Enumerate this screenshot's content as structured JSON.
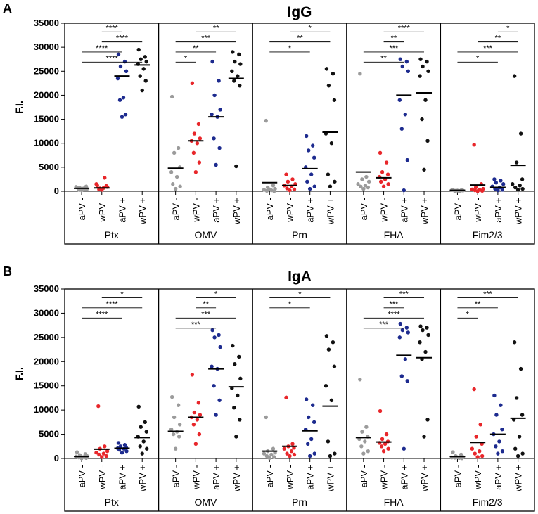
{
  "colors": {
    "aPV-": "#9b9b9b",
    "wPV-": "#e8262a",
    "aPV+": "#1d2b8f",
    "wPV+": "#111111"
  },
  "chart_data": [
    {
      "type": "scatter",
      "letter": "A",
      "title": "IgG",
      "ylabel": "F.I.",
      "ylim": [
        0,
        35000
      ],
      "yticks": [
        "0",
        "5000",
        "10000",
        "15000",
        "20000",
        "25000",
        "30000",
        "35000"
      ],
      "groups": [
        "aPV -",
        "wPV -",
        "aPV +",
        "wPV +"
      ],
      "panels": [
        {
          "antigen": "Ptx",
          "points": [
            [
              800,
              400,
              700,
              500,
              900,
              600,
              300,
              1000,
              200
            ],
            [
              1200,
              2800,
              600,
              900,
              1500,
              700,
              400,
              1100,
              300
            ],
            [
              28500,
              27000,
              26000,
              25000,
              23500,
              19500,
              19000,
              16000,
              15500
            ],
            [
              29500,
              28000,
              27500,
              27000,
              26500,
              25500,
              24000,
              23000,
              21000
            ]
          ],
          "medians": [
            600,
            700,
            24000,
            26300
          ],
          "sig": [
            {
              "a": 0,
              "b": 3,
              "label": "****"
            },
            {
              "a": 0,
              "b": 2,
              "label": "****"
            },
            {
              "a": 1,
              "b": 3,
              "label": "****"
            },
            {
              "a": 1,
              "b": 2,
              "label": "****"
            }
          ]
        },
        {
          "antigen": "OMV",
          "points": [
            [
              19700,
              9000,
              8000,
              5000,
              4000,
              3000,
              1500,
              1000,
              500
            ],
            [
              22500,
              14000,
              12000,
              11000,
              10500,
              10000,
              8000,
              6000,
              4000
            ],
            [
              27000,
              23000,
              20000,
              17000,
              16000,
              15500,
              11000,
              9000,
              5500
            ],
            [
              29000,
              28500,
              27000,
              26500,
              25000,
              24000,
              23000,
              22000,
              5200
            ]
          ],
          "medians": [
            4800,
            10500,
            15500,
            23500
          ],
          "sig": [
            {
              "a": 0,
              "b": 1,
              "label": "*"
            },
            {
              "a": 0,
              "b": 2,
              "label": "**"
            },
            {
              "a": 0,
              "b": 3,
              "label": "***"
            },
            {
              "a": 1,
              "b": 3,
              "label": "**"
            }
          ]
        },
        {
          "antigen": "Prn",
          "points": [
            [
              14700,
              1200,
              800,
              500,
              300,
              200,
              100,
              50,
              400
            ],
            [
              3500,
              2500,
              2000,
              1500,
              1200,
              1000,
              600,
              400,
              200
            ],
            [
              11500,
              9500,
              8500,
              7000,
              5000,
              3500,
              2000,
              1000,
              500
            ],
            [
              25500,
              24500,
              22000,
              19000,
              12000,
              10000,
              3500,
              2000,
              1000
            ]
          ],
          "medians": [
            1800,
            1200,
            4700,
            12300
          ],
          "sig": [
            {
              "a": 0,
              "b": 2,
              "label": "*"
            },
            {
              "a": 0,
              "b": 3,
              "label": "**"
            },
            {
              "a": 1,
              "b": 3,
              "label": "*"
            }
          ]
        },
        {
          "antigen": "FHA",
          "points": [
            [
              24500,
              3000,
              2500,
              2000,
              1500,
              1200,
              1000,
              800,
              500
            ],
            [
              8000,
              6000,
              4000,
              3500,
              3000,
              2500,
              2000,
              1500,
              1000
            ],
            [
              27500,
              27000,
              26000,
              25000,
              19000,
              16000,
              13000,
              6500,
              200
            ],
            [
              27500,
              27000,
              26000,
              25000,
              24000,
              19000,
              15000,
              10500,
              4500
            ]
          ],
          "medians": [
            4000,
            2800,
            20000,
            20500
          ],
          "sig": [
            {
              "a": 0,
              "b": 2,
              "label": "**"
            },
            {
              "a": 0,
              "b": 3,
              "label": "***"
            },
            {
              "a": 1,
              "b": 2,
              "label": "**"
            },
            {
              "a": 1,
              "b": 3,
              "label": "****"
            }
          ]
        },
        {
          "antigen": "Fim2/3",
          "points": [
            [
              300,
              200,
              100,
              150,
              250,
              50,
              100,
              200,
              150
            ],
            [
              9700,
              1500,
              800,
              500,
              400,
              300,
              200,
              100,
              50
            ],
            [
              2500,
              2200,
              1800,
              1500,
              1000,
              800,
              500,
              300,
              200
            ],
            [
              24000,
              12000,
              6000,
              2500,
              1500,
              1200,
              800,
              500,
              300
            ]
          ],
          "medians": [
            200,
            1300,
            800,
            5400
          ],
          "sig": [
            {
              "a": 0,
              "b": 2,
              "label": "*"
            },
            {
              "a": 0,
              "b": 3,
              "label": "***"
            },
            {
              "a": 1,
              "b": 3,
              "label": "**"
            },
            {
              "a": 2,
              "b": 3,
              "label": "*"
            }
          ]
        }
      ]
    },
    {
      "type": "scatter",
      "letter": "B",
      "title": "IgA",
      "ylabel": "F.I.",
      "ylim": [
        0,
        35000
      ],
      "yticks": [
        "0",
        "5000",
        "10000",
        "15000",
        "20000",
        "25000",
        "30000",
        "35000"
      ],
      "groups": [
        "aPV -",
        "wPV -",
        "aPV +",
        "wPV +"
      ],
      "panels": [
        {
          "antigen": "Ptx",
          "points": [
            [
              1300,
              900,
              700,
              500,
              400,
              300,
              200,
              100,
              50
            ],
            [
              10800,
              2500,
              2000,
              1500,
              1200,
              1000,
              800,
              500,
              300
            ],
            [
              3200,
              2800,
              2500,
              2200,
              2100,
              2000,
              1800,
              1500,
              1200
            ],
            [
              10700,
              7500,
              6500,
              5500,
              4500,
              3500,
              2500,
              2000,
              1000
            ]
          ],
          "medians": [
            400,
            1900,
            2100,
            4300
          ],
          "sig": [
            {
              "a": 0,
              "b": 2,
              "label": "****"
            },
            {
              "a": 0,
              "b": 3,
              "label": "****"
            },
            {
              "a": 1,
              "b": 3,
              "label": "*"
            }
          ]
        },
        {
          "antigen": "OMV",
          "points": [
            [
              12700,
              11000,
              8500,
              7000,
              6000,
              5500,
              5000,
              4500,
              2000
            ],
            [
              17300,
              11500,
              9500,
              9000,
              8500,
              8000,
              7000,
              5000,
              3000
            ],
            [
              26500,
              25500,
              25000,
              23000,
              19000,
              18500,
              15000,
              12000,
              9000
            ],
            [
              23300,
              21000,
              19500,
              16500,
              14500,
              13000,
              10500,
              8000,
              4500
            ]
          ],
          "medians": [
            5600,
            8500,
            18500,
            14800
          ],
          "sig": [
            {
              "a": 0,
              "b": 2,
              "label": "***"
            },
            {
              "a": 0,
              "b": 3,
              "label": "***"
            },
            {
              "a": 1,
              "b": 2,
              "label": "**"
            },
            {
              "a": 1,
              "b": 3,
              "label": "*"
            }
          ]
        },
        {
          "antigen": "Prn",
          "points": [
            [
              8500,
              2000,
              1500,
              1200,
              1000,
              800,
              500,
              300,
              100
            ],
            [
              12600,
              3000,
              2500,
              2200,
              2000,
              1500,
              1000,
              800,
              500
            ],
            [
              12200,
              11000,
              8500,
              7500,
              6000,
              4000,
              3000,
              1000,
              500
            ],
            [
              25300,
              24000,
              22500,
              19000,
              15000,
              12000,
              3500,
              1000,
              500
            ]
          ],
          "medians": [
            1500,
            2500,
            5700,
            10800
          ],
          "sig": [
            {
              "a": 0,
              "b": 2,
              "label": "*"
            },
            {
              "a": 0,
              "b": 3,
              "label": "*"
            }
          ]
        },
        {
          "antigen": "FHA",
          "points": [
            [
              16300,
              6500,
              5500,
              4500,
              4000,
              3500,
              2500,
              1500,
              1000
            ],
            [
              9800,
              5000,
              4000,
              3500,
              3200,
              3000,
              2500,
              2000,
              1500
            ],
            [
              27800,
              27000,
              26500,
              26000,
              25000,
              20500,
              17000,
              16000,
              2000
            ],
            [
              27300,
              27000,
              26500,
              25500,
              24000,
              22000,
              20500,
              8000,
              4500
            ]
          ],
          "medians": [
            4300,
            3400,
            21300,
            20800
          ],
          "sig": [
            {
              "a": 0,
              "b": 2,
              "label": "***"
            },
            {
              "a": 0,
              "b": 3,
              "label": "****"
            },
            {
              "a": 1,
              "b": 2,
              "label": "***"
            },
            {
              "a": 1,
              "b": 3,
              "label": "***"
            }
          ]
        },
        {
          "antigen": "Fim2/3",
          "points": [
            [
              1300,
              800,
              500,
              300,
              200,
              100,
              150,
              50,
              250
            ],
            [
              14300,
              7000,
              4500,
              3000,
              2000,
              1500,
              1000,
              500,
              300
            ],
            [
              13000,
              11000,
              9000,
              6000,
              5000,
              3500,
              2500,
              1500,
              1000
            ],
            [
              24000,
              18500,
              12500,
              9000,
              8000,
              4500,
              2000,
              1000,
              500
            ]
          ],
          "medians": [
            400,
            3300,
            5000,
            8300
          ],
          "sig": [
            {
              "a": 0,
              "b": 1,
              "label": "*"
            },
            {
              "a": 0,
              "b": 2,
              "label": "**"
            },
            {
              "a": 0,
              "b": 3,
              "label": "***"
            }
          ]
        }
      ]
    }
  ]
}
